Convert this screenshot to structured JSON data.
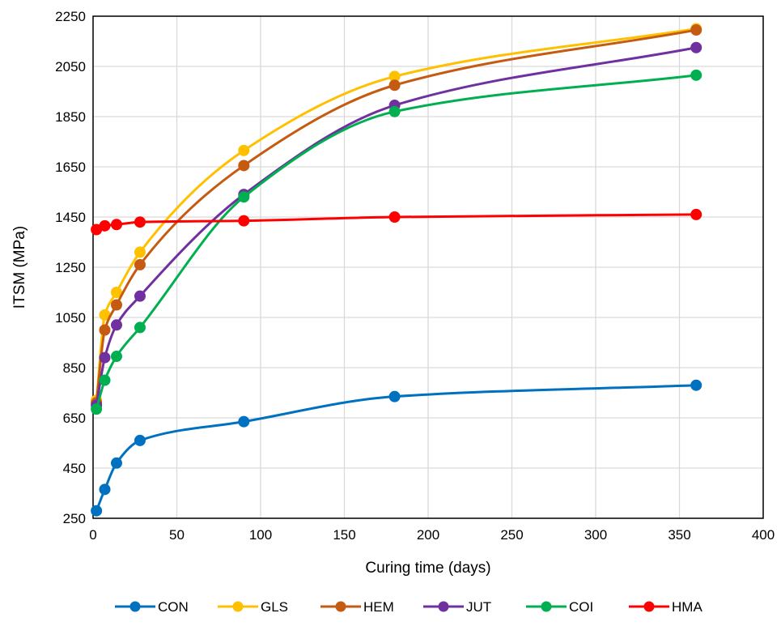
{
  "chart_data": {
    "type": "line",
    "title": "",
    "xlabel": "Curing time (days)",
    "ylabel": "ITSM (MPa)",
    "xlim": [
      0,
      400
    ],
    "ylim": [
      250,
      2250
    ],
    "xticks": [
      0,
      50,
      100,
      150,
      200,
      250,
      300,
      350,
      400
    ],
    "yticks": [
      250,
      450,
      650,
      850,
      1050,
      1250,
      1450,
      1650,
      1850,
      2050,
      2250
    ],
    "grid": true,
    "legend_position": "bottom",
    "smooth": true,
    "x": [
      2,
      7,
      14,
      28,
      90,
      180,
      360
    ],
    "series": [
      {
        "name": "CON",
        "color": "#0070C0",
        "values": [
          280,
          365,
          470,
          560,
          635,
          735,
          780
        ]
      },
      {
        "name": "GLS",
        "color": "#FFC000",
        "values": [
          720,
          1060,
          1150,
          1310,
          1715,
          2010,
          2200
        ]
      },
      {
        "name": "HEM",
        "color": "#C55A11",
        "values": [
          710,
          1000,
          1100,
          1260,
          1655,
          1975,
          2195
        ]
      },
      {
        "name": "JUT",
        "color": "#7030A0",
        "values": [
          700,
          890,
          1020,
          1135,
          1540,
          1895,
          2125
        ]
      },
      {
        "name": "COI",
        "color": "#00B050",
        "values": [
          685,
          800,
          895,
          1010,
          1530,
          1870,
          2015
        ]
      },
      {
        "name": "HMA",
        "color": "#FF0000",
        "values": [
          1400,
          1415,
          1420,
          1430,
          1435,
          1450,
          1460
        ]
      }
    ]
  }
}
